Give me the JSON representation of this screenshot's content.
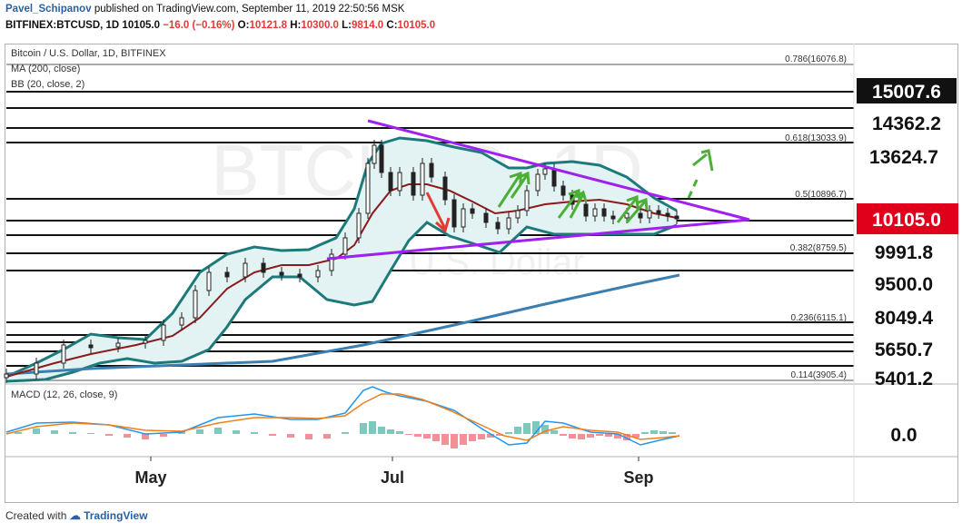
{
  "header": {
    "author": "Pavel_Schipanov",
    "published": "published on TradingView.com, September 11, 2019 22:50:56 MSK",
    "symbol_line_prefix": "BITFINEX:BTCUSD, 1D 10105.0 ",
    "change": "−16.0 (−0.16%)",
    "ohlc": {
      "o_label": "O:",
      "o": "10121.8",
      "h_label": "H:",
      "h": "10300.0",
      "l_label": "L:",
      "l": "9814.0",
      "c_label": "C:",
      "c": "10105.0"
    }
  },
  "legend": {
    "title": "Bitcoin / U.S. Dollar, 1D, BITFINEX",
    "ma": "MA (200, close)",
    "bb": "BB (20, close, 2)",
    "macd": "MACD (12, 26, close, 9)"
  },
  "watermark": {
    "big": "BTCUSD, 1D",
    "small": "Bitcoin / U.S. Dollar"
  },
  "fib_labels": [
    {
      "text": "0.786(16076.8)"
    },
    {
      "text": "0.618(13033.9)"
    },
    {
      "text": "0.5(10896.7)"
    },
    {
      "text": "0.382(8759.5)"
    },
    {
      "text": "0.236(6115.1)"
    },
    {
      "text": "0.114(3905.4)"
    }
  ],
  "price_axis": [
    "15007.6",
    "14362.2",
    "13624.7",
    "10105.0",
    "9991.8",
    "9500.0",
    "8049.4",
    "5650.7",
    "5401.2"
  ],
  "macd_axis": "0.0",
  "time_axis": [
    "May",
    "Jul",
    "Sep"
  ],
  "footer": {
    "created": "Created with",
    "brand": "TradingView"
  },
  "colors": {
    "current_price_bg": "#e0001b",
    "triangle": "#a020f0",
    "bb": "#1e7a7a",
    "ma200": "#3b7fb0",
    "sma20": "#8b1a1a",
    "up_arrow": "#4caf35",
    "down_arrow": "#e53935"
  }
}
